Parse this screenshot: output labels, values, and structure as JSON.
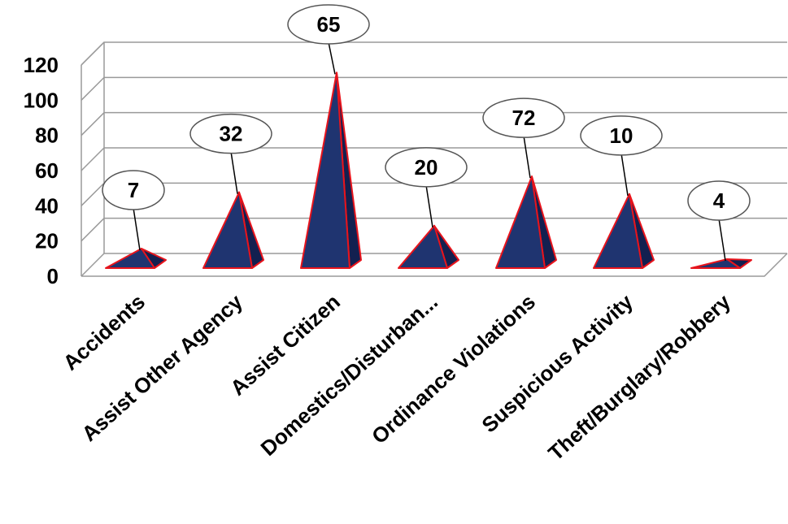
{
  "chart_data": {
    "type": "bar",
    "shape": "pyramid",
    "categories": [
      "Accidents",
      "Assist Other Agency",
      "Assist Citizen",
      "Domestics/Disturban...",
      "Ordinance Violations",
      "Suspicious Activity",
      "Theft/Burglary/Robbery"
    ],
    "values": [
      12,
      44,
      112,
      25,
      53,
      43,
      6
    ],
    "data_labels": [
      "7",
      "32",
      "65",
      "20",
      "72",
      "10",
      "4"
    ],
    "yticks": [
      "0",
      "20",
      "40",
      "60",
      "80",
      "100",
      "120"
    ],
    "ylim": [
      0,
      120
    ],
    "grid": true,
    "colors": {
      "fill": "#1f3470",
      "fill_dark": "#132050",
      "edge": "#e8141c",
      "grid": "#9a9a9a"
    }
  }
}
